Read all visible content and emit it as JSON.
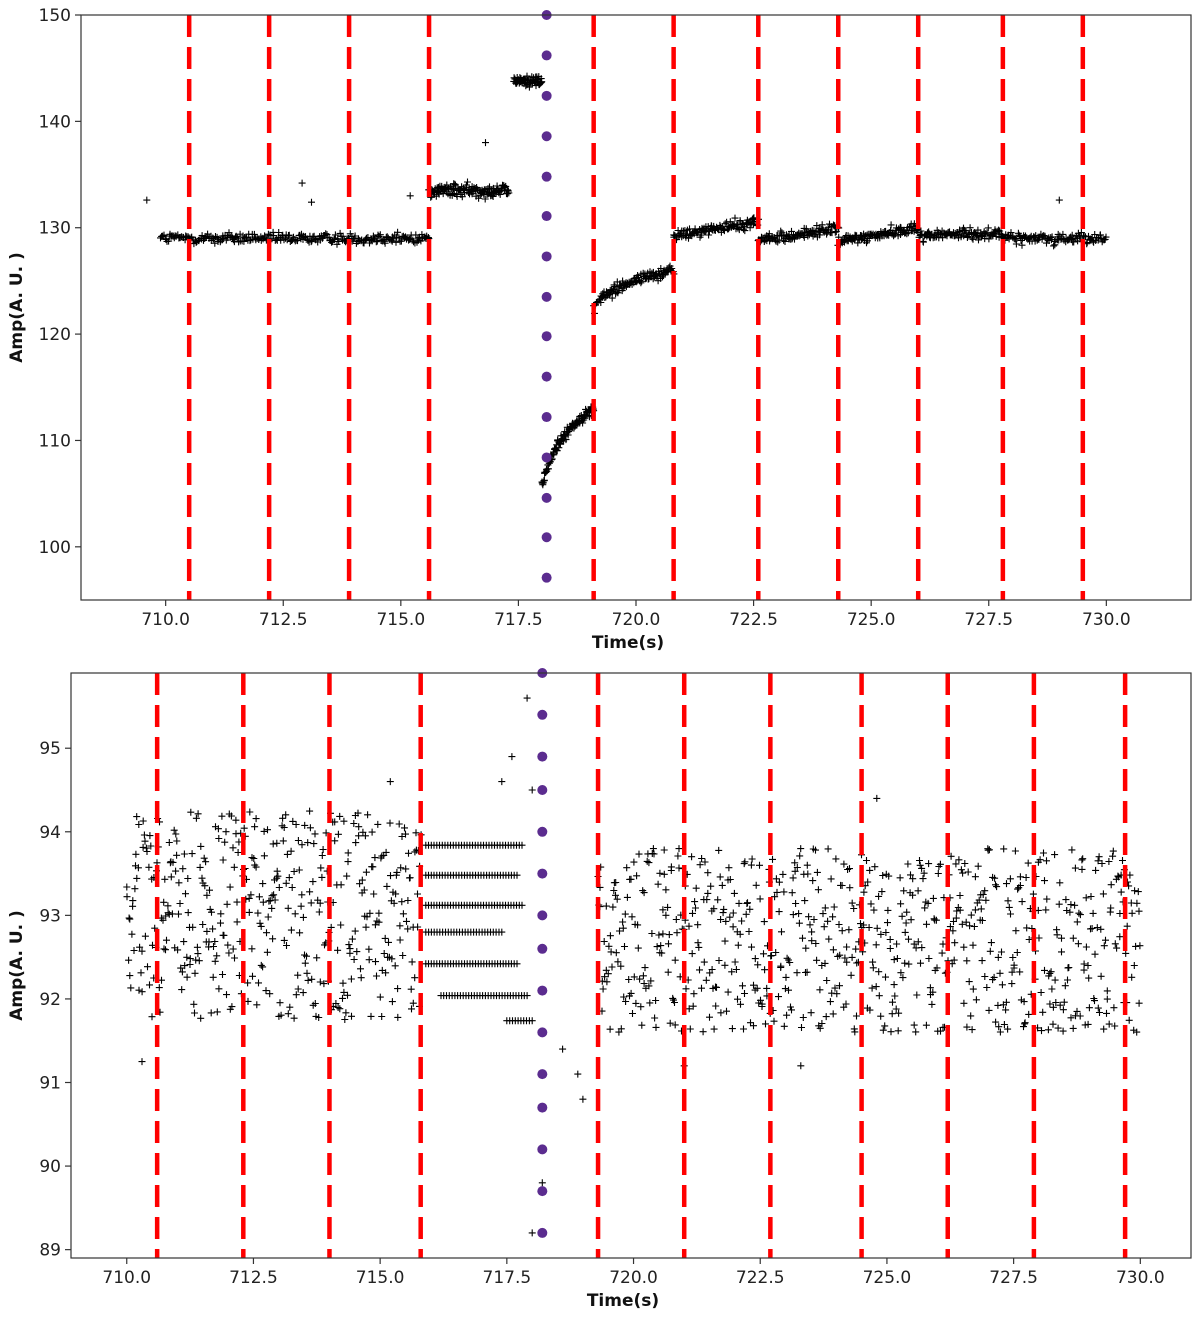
{
  "chart_data": [
    {
      "type": "scatter",
      "xlabel": "Time(s)",
      "ylabel": "Amp(A. U. )",
      "xlim": [
        708.2,
        731.8
      ],
      "ylim": [
        95,
        150
      ],
      "xticks": [
        710.0,
        712.5,
        715.0,
        717.5,
        720.0,
        722.5,
        725.0,
        727.5,
        730.0
      ],
      "xtick_labels": [
        "710.0",
        "712.5",
        "715.0",
        "717.5",
        "720.0",
        "722.5",
        "725.0",
        "727.5",
        "730.0"
      ],
      "yticks": [
        100,
        110,
        120,
        130,
        140,
        150
      ],
      "ytick_labels": [
        "100",
        "110",
        "120",
        "130",
        "140",
        "150"
      ],
      "grid": false,
      "vertical_lines": {
        "style": "dashed",
        "color": "#ff0000",
        "x": [
          710.5,
          712.2,
          713.9,
          715.6,
          719.1,
          720.8,
          722.6,
          724.3,
          726.0,
          727.8,
          729.5
        ]
      },
      "marker_line": {
        "color": "#5b2c8f",
        "x": 718.1,
        "y": [
          150,
          146.2,
          142.4,
          138.6,
          134.8,
          131.1,
          127.3,
          123.5,
          119.8,
          116.0,
          112.2,
          108.4,
          104.6,
          100.9,
          97.1
        ]
      },
      "segments": [
        {
          "x_range": [
            709.9,
            715.6
          ],
          "y_start": 129.0,
          "y_end": 129.0,
          "noise": 1.0,
          "n": 260
        },
        {
          "x_range": [
            715.6,
            717.3
          ],
          "y_start": 133.5,
          "y_end": 133.5,
          "noise": 1.2,
          "n": 130
        },
        {
          "x_range": [
            717.4,
            718.0
          ],
          "y_start": 143.8,
          "y_end": 143.8,
          "noise": 1.0,
          "n": 60
        },
        {
          "x_range": [
            718.0,
            719.1
          ],
          "y_start": 105.5,
          "y_end": 113.0,
          "noise": 1.0,
          "n": 110,
          "curve": "log"
        },
        {
          "x_range": [
            719.1,
            720.8
          ],
          "y_start": 122.5,
          "y_end": 126.0,
          "noise": 1.0,
          "n": 120,
          "curve": "log"
        },
        {
          "x_range": [
            720.8,
            722.6
          ],
          "y_start": 129.2,
          "y_end": 130.6,
          "noise": 1.0,
          "n": 110
        },
        {
          "x_range": [
            722.6,
            724.3
          ],
          "y_start": 128.8,
          "y_end": 129.9,
          "noise": 1.0,
          "n": 110
        },
        {
          "x_range": [
            724.3,
            726.0
          ],
          "y_start": 128.7,
          "y_end": 130.0,
          "noise": 1.0,
          "n": 110
        },
        {
          "x_range": [
            726.0,
            727.8
          ],
          "y_start": 129.3,
          "y_end": 129.5,
          "noise": 1.0,
          "n": 110
        },
        {
          "x_range": [
            727.8,
            730.0
          ],
          "y_start": 129.0,
          "y_end": 129.0,
          "noise": 1.0,
          "n": 110
        }
      ],
      "outliers": [
        [
          709.6,
          132.6
        ],
        [
          712.9,
          134.2
        ],
        [
          713.1,
          132.4
        ],
        [
          715.2,
          133.0
        ],
        [
          716.8,
          138.0
        ],
        [
          729.0,
          132.6
        ]
      ]
    },
    {
      "type": "scatter",
      "xlabel": "Time(s)",
      "ylabel": "Amp(A. U. )",
      "xlim": [
        708.9,
        731.0
      ],
      "ylim": [
        88.9,
        95.9
      ],
      "xticks": [
        710.0,
        712.5,
        715.0,
        717.5,
        720.0,
        722.5,
        725.0,
        727.5,
        730.0
      ],
      "xtick_labels": [
        "710.0",
        "712.5",
        "715.0",
        "717.5",
        "720.0",
        "722.5",
        "725.0",
        "727.5",
        "730.0"
      ],
      "yticks": [
        89,
        90,
        91,
        92,
        93,
        94,
        95
      ],
      "ytick_labels": [
        "89",
        "90",
        "91",
        "92",
        "93",
        "94",
        "95"
      ],
      "grid": false,
      "vertical_lines": {
        "style": "dashed",
        "color": "#ff0000",
        "x": [
          710.6,
          712.3,
          714.0,
          715.8,
          719.3,
          721.0,
          722.7,
          724.5,
          726.2,
          727.9,
          729.7
        ]
      },
      "marker_line": {
        "color": "#5b2c8f",
        "x": 718.2,
        "y": [
          95.9,
          95.4,
          94.9,
          94.5,
          94.0,
          93.5,
          93.0,
          92.6,
          92.1,
          91.6,
          91.1,
          90.7,
          90.2,
          89.7,
          89.2
        ]
      },
      "segments": [
        {
          "x_range": [
            710.0,
            715.8
          ],
          "center": 93.0,
          "spread": 1.25,
          "n": 420
        },
        {
          "x_range": [
            719.3,
            730.0
          ],
          "center": 92.7,
          "spread": 1.1,
          "n": 700
        }
      ],
      "quantized_rows": [
        {
          "y": 93.84,
          "x_range": [
            715.9,
            717.8
          ]
        },
        {
          "y": 93.48,
          "x_range": [
            715.9,
            717.7
          ]
        },
        {
          "y": 93.12,
          "x_range": [
            715.9,
            717.8
          ]
        },
        {
          "y": 92.8,
          "x_range": [
            715.9,
            717.4
          ]
        },
        {
          "y": 92.42,
          "x_range": [
            715.9,
            717.7
          ]
        },
        {
          "y": 92.04,
          "x_range": [
            716.2,
            717.9
          ]
        },
        {
          "y": 91.74,
          "x_range": [
            717.5,
            718.0
          ]
        }
      ],
      "outliers": [
        [
          717.9,
          95.6
        ],
        [
          717.6,
          94.9
        ],
        [
          717.4,
          94.6
        ],
        [
          718.0,
          94.5
        ],
        [
          715.2,
          94.6
        ],
        [
          718.6,
          91.4
        ],
        [
          718.9,
          91.1
        ],
        [
          719.0,
          90.8
        ],
        [
          718.2,
          89.8
        ],
        [
          718.0,
          89.2
        ],
        [
          710.3,
          91.25
        ],
        [
          721.0,
          91.2
        ],
        [
          724.8,
          94.4
        ],
        [
          723.3,
          91.2
        ]
      ]
    }
  ]
}
